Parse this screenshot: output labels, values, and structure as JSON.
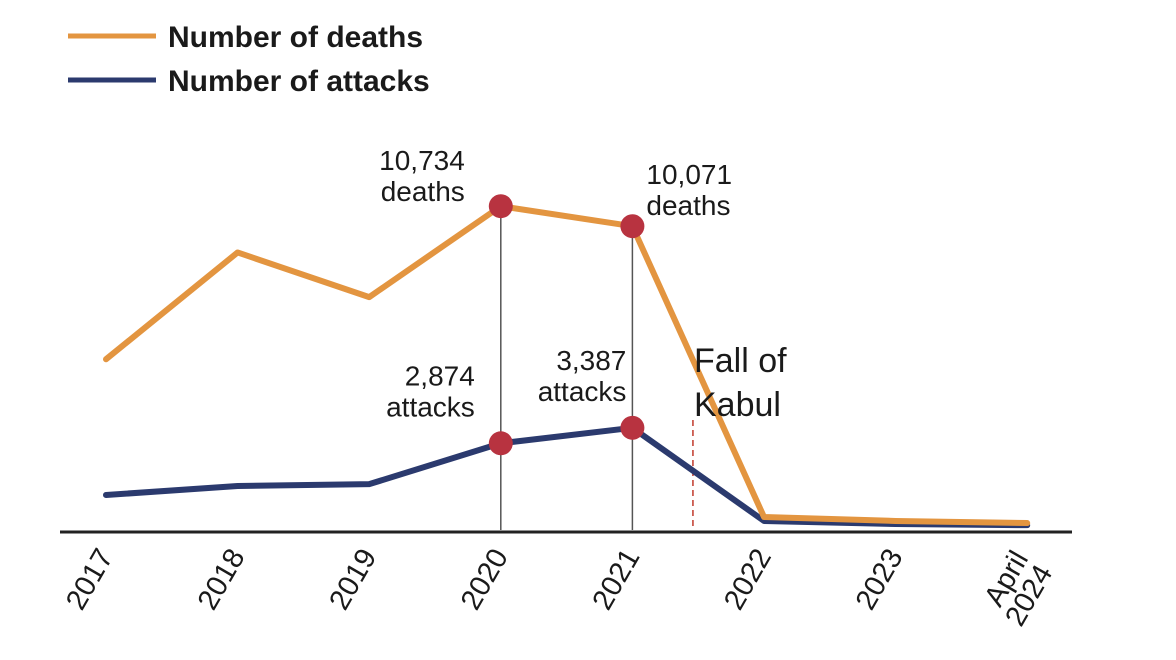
{
  "chart_data": {
    "type": "line",
    "title": "",
    "xlabel": "",
    "ylabel": "",
    "categories": [
      "2017",
      "2018",
      "2019",
      "2020",
      "2021",
      "2022",
      "2023",
      "April 2024"
    ],
    "last_tick": {
      "line1": "April",
      "line2": "2024"
    },
    "ylim": [
      0,
      12000
    ],
    "grid": false,
    "legend_position": "top-left",
    "series": [
      {
        "name": "Number of deaths",
        "color": "#E39540",
        "values": [
          5660,
          9200,
          7720,
          10734,
          10071,
          430,
          300,
          230
        ]
      },
      {
        "name": "Number of attacks",
        "color": "#2B3A6E",
        "values": [
          1160,
          1460,
          1520,
          2874,
          3387,
          300,
          200,
          160
        ]
      }
    ],
    "highlight_color": "#B83340",
    "tick_highlight_color": "#7A1F2E",
    "annotations": [
      {
        "series": 0,
        "index": 3,
        "line1": "10,734",
        "line2": "deaths"
      },
      {
        "series": 0,
        "index": 4,
        "line1": "10,071",
        "line2": "deaths"
      },
      {
        "series": 1,
        "index": 3,
        "line1": "2,874",
        "line2": "attacks"
      },
      {
        "series": 1,
        "index": 4,
        "line1": "3,387",
        "line2": "attacks"
      }
    ],
    "event": {
      "x_position_years": 2021.46,
      "line1": "Fall of",
      "line2": "Kabul",
      "color": "#C0392B"
    }
  }
}
